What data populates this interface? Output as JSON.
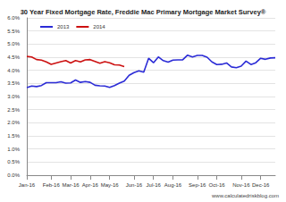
{
  "chart_data": {
    "type": "line",
    "title": "30 Year Fixed Mortgage Rate, Freddie Mac Primary Mortgage Market Survey®",
    "source": "www.calculatedriskblog.com",
    "categories": [
      "Jan-16",
      null,
      null,
      null,
      null,
      "Feb-16",
      null,
      null,
      null,
      "Mar-16",
      null,
      null,
      null,
      "Apr-16",
      null,
      null,
      null,
      "May-16",
      null,
      null,
      null,
      null,
      "Jun-16",
      null,
      null,
      null,
      "Jul-16",
      null,
      null,
      null,
      "Aug-16",
      null,
      null,
      null,
      null,
      "Sep-16",
      null,
      null,
      null,
      "Oct-16",
      null,
      null,
      null,
      null,
      "Nov-16",
      null,
      null,
      null,
      "Dec-16",
      null,
      null,
      null
    ],
    "series": [
      {
        "name": "2013",
        "color": "#2b2bd6",
        "values": [
          3.34,
          3.4,
          3.38,
          3.42,
          3.53,
          3.53,
          3.53,
          3.56,
          3.51,
          3.52,
          3.63,
          3.54,
          3.57,
          3.54,
          3.43,
          3.41,
          3.4,
          3.35,
          3.42,
          3.51,
          3.59,
          3.81,
          3.91,
          3.98,
          3.93,
          4.46,
          4.29,
          4.51,
          4.37,
          4.31,
          4.39,
          4.4,
          4.4,
          4.58,
          4.51,
          4.57,
          4.57,
          4.5,
          4.32,
          4.22,
          4.23,
          4.28,
          4.13,
          4.1,
          4.16,
          4.35,
          4.22,
          4.29,
          4.46,
          4.42,
          4.47,
          4.48
        ]
      },
      {
        "name": "2014",
        "color": "#cc1111",
        "values": [
          4.53,
          4.51,
          4.41,
          4.39,
          4.32,
          4.23,
          4.28,
          4.33,
          4.37,
          4.28,
          4.37,
          4.32,
          4.4,
          4.41,
          4.34,
          4.27,
          4.33,
          4.29,
          4.21,
          4.2,
          4.14,
          null,
          null,
          null,
          null,
          null,
          null,
          null,
          null,
          null,
          null,
          null,
          null,
          null,
          null,
          null,
          null,
          null,
          null,
          null,
          null,
          null,
          null,
          null,
          null,
          null,
          null,
          null,
          null,
          null,
          null,
          null
        ]
      }
    ],
    "ylim": [
      0,
      6
    ],
    "yticks": [
      {
        "value": 0,
        "label": "0.0%"
      },
      {
        "value": 0.5,
        "label": "0.5%"
      },
      {
        "value": 1,
        "label": "1.0%"
      },
      {
        "value": 1.5,
        "label": "1.5%"
      },
      {
        "value": 2,
        "label": "2.0%"
      },
      {
        "value": 2.5,
        "label": "2.5%"
      },
      {
        "value": 3,
        "label": "3.0%"
      },
      {
        "value": 3.5,
        "label": "3.5%"
      },
      {
        "value": 4,
        "label": "4.0%"
      },
      {
        "value": 4.5,
        "label": "4.5%"
      },
      {
        "value": 5,
        "label": "5.0%"
      },
      {
        "value": 5.5,
        "label": "5.5%"
      },
      {
        "value": 6,
        "label": "6.0%"
      }
    ],
    "grid": true,
    "legend": "top-left"
  }
}
